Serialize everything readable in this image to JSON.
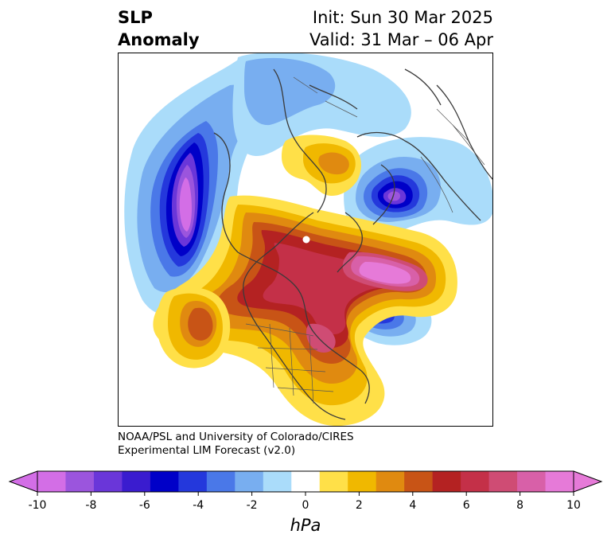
{
  "header": {
    "title_line1": "SLP",
    "title_line2": "Anomaly",
    "init_label": "Init: Sun 30 Mar 2025",
    "valid_label": "Valid: 31 Mar – 06 Apr"
  },
  "credits": {
    "line1": "NOAA/PSL and University of Colorado/CIRES",
    "line2": "Experimental LIM Forecast (v2.0)"
  },
  "colorbar": {
    "unit": "hPa",
    "tick_labels": [
      "-10",
      "-8",
      "-6",
      "-4",
      "-2",
      "0",
      "2",
      "4",
      "6",
      "8",
      "10"
    ],
    "colors": [
      "#d36ee6",
      "#9b55dd",
      "#6a36d9",
      "#3a1ccf",
      "#0000c8",
      "#2438dc",
      "#4a78e8",
      "#78aef0",
      "#aadcfa",
      "#ffffff",
      "#ffe048",
      "#f0b800",
      "#e08a10",
      "#c85416",
      "#b42222",
      "#c43048",
      "#cf4c74",
      "#d860a8",
      "#e67ad8"
    ],
    "extend": "both"
  }
}
